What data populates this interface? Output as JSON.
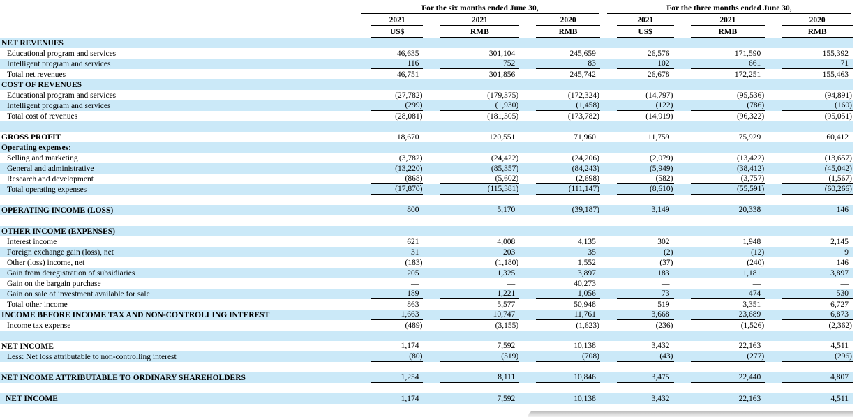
{
  "colors": {
    "stripe": "#cbe9f8",
    "rule": "#000000"
  },
  "table": {
    "groups": [
      {
        "label": "For the six months ended June 30,",
        "years": [
          "2021",
          "2021",
          "2020"
        ],
        "units": [
          "US$",
          "RMB",
          "RMB"
        ]
      },
      {
        "label": "For the three months ended June 30,",
        "years": [
          "2021",
          "2021",
          "2020"
        ],
        "units": [
          "US$",
          "RMB",
          "RMB"
        ]
      }
    ],
    "rows": [
      {
        "type": "section",
        "label": "NET REVENUES",
        "values": [
          "",
          "",
          "",
          "",
          "",
          ""
        ]
      },
      {
        "type": "item",
        "label": "Educational program and services",
        "values": [
          "46,635",
          "301,104",
          "245,659",
          "26,576",
          "171,590",
          "155,392"
        ]
      },
      {
        "type": "item",
        "label": "Intelligent program and services",
        "underline": true,
        "values": [
          "116",
          "752",
          "83",
          "102",
          "661",
          "71"
        ]
      },
      {
        "type": "item",
        "label": "Total net revenues",
        "values": [
          "46,751",
          "301,856",
          "245,742",
          "26,678",
          "172,251",
          "155,463"
        ]
      },
      {
        "type": "section",
        "label": "COST OF REVENUES",
        "values": [
          "",
          "",
          "",
          "",
          "",
          ""
        ]
      },
      {
        "type": "item",
        "label": "Educational program and services",
        "values": [
          "(27,782)",
          "(179,375)",
          "(172,324)",
          "(14,797)",
          "(95,536)",
          "(94,891)"
        ]
      },
      {
        "type": "item",
        "label": "Intelligent program and services",
        "underline": true,
        "values": [
          "(299)",
          "(1,930)",
          "(1,458)",
          "(122)",
          "(786)",
          "(160)"
        ]
      },
      {
        "type": "item",
        "label": "Total cost of revenues",
        "values": [
          "(28,081)",
          "(181,305)",
          "(173,782)",
          "(14,919)",
          "(96,322)",
          "(95,051)"
        ]
      },
      {
        "type": "spacer"
      },
      {
        "type": "section",
        "label": "GROSS PROFIT",
        "values": [
          "18,670",
          "120,551",
          "71,960",
          "11,759",
          "75,929",
          "60,412"
        ]
      },
      {
        "type": "section",
        "label": "Operating expenses:",
        "values": [
          "",
          "",
          "",
          "",
          "",
          ""
        ]
      },
      {
        "type": "item",
        "label": "Selling and marketing",
        "values": [
          "(3,782)",
          "(24,422)",
          "(24,206)",
          "(2,079)",
          "(13,422)",
          "(13,657)"
        ]
      },
      {
        "type": "item",
        "label": "General and administrative",
        "values": [
          "(13,220)",
          "(85,357)",
          "(84,243)",
          "(5,949)",
          "(38,412)",
          "(45,042)"
        ]
      },
      {
        "type": "item",
        "label": "Research and development",
        "underline": true,
        "values": [
          "(868)",
          "(5,602)",
          "(2,698)",
          "(582)",
          "(3,757)",
          "(1,567)"
        ]
      },
      {
        "type": "item",
        "label": "Total operating expenses",
        "underline": true,
        "values": [
          "(17,870)",
          "(115,381)",
          "(111,147)",
          "(8,610)",
          "(55,591)",
          "(60,266)"
        ]
      },
      {
        "type": "spacer"
      },
      {
        "type": "section",
        "label": "OPERATING INCOME (LOSS)",
        "underline": true,
        "values": [
          "800",
          "5,170",
          "(39,187)",
          "3,149",
          "20,338",
          "146"
        ]
      },
      {
        "type": "spacer"
      },
      {
        "type": "section",
        "label": "OTHER INCOME (EXPENSES)",
        "values": [
          "",
          "",
          "",
          "",
          "",
          ""
        ]
      },
      {
        "type": "item",
        "label": "Interest income",
        "values": [
          "621",
          "4,008",
          "4,135",
          "302",
          "1,948",
          "2,145"
        ]
      },
      {
        "type": "item",
        "label": "Foreign exchange gain (loss), net",
        "values": [
          "31",
          "203",
          "35",
          "(2)",
          "(12)",
          "9"
        ]
      },
      {
        "type": "item",
        "label": "Other (loss) income, net",
        "values": [
          "(183)",
          "(1,180)",
          "1,552",
          "(37)",
          "(240)",
          "146"
        ]
      },
      {
        "type": "item",
        "label": "Gain from deregistration of subsidiaries",
        "values": [
          "205",
          "1,325",
          "3,897",
          "183",
          "1,181",
          "3,897"
        ]
      },
      {
        "type": "item",
        "label": "Gain on the bargain purchase",
        "values": [
          "—",
          "—",
          "40,273",
          "—",
          "—",
          "—"
        ]
      },
      {
        "type": "item",
        "label": "Gain on sale of investment available for sale",
        "underline": true,
        "values": [
          "189",
          "1,221",
          "1,056",
          "73",
          "474",
          "530"
        ]
      },
      {
        "type": "item",
        "label": "Total other income",
        "values": [
          "863",
          "5,577",
          "50,948",
          "519",
          "3,351",
          "6,727"
        ]
      },
      {
        "type": "section",
        "label": "INCOME BEFORE INCOME TAX AND NON-CONTROLLING INTEREST",
        "underline": true,
        "values": [
          "1,663",
          "10,747",
          "11,761",
          "3,668",
          "23,689",
          "6,873"
        ]
      },
      {
        "type": "item",
        "label": "Income tax expense",
        "values": [
          "(489)",
          "(3,155)",
          "(1,623)",
          "(236)",
          "(1,526)",
          "(2,362)"
        ]
      },
      {
        "type": "spacer"
      },
      {
        "type": "section",
        "label": "NET INCOME",
        "underline": true,
        "values": [
          "1,174",
          "7,592",
          "10,138",
          "3,432",
          "22,163",
          "4,511"
        ]
      },
      {
        "type": "item",
        "label": "Less: Net loss attributable to non-controlling interest",
        "underline": true,
        "values": [
          "(80)",
          "(519)",
          "(708)",
          "(43)",
          "(277)",
          "(296)"
        ]
      },
      {
        "type": "spacer"
      },
      {
        "type": "section",
        "label": "NET INCOME ATTRIBUTABLE TO ORDINARY SHAREHOLDERS",
        "underline": "thick",
        "values": [
          "1,254",
          "8,111",
          "10,846",
          "3,475",
          "22,440",
          "4,807"
        ]
      },
      {
        "type": "spacer"
      },
      {
        "type": "section-indent",
        "label": "NET INCOME",
        "values": [
          "1,174",
          "7,592",
          "10,138",
          "3,432",
          "22,163",
          "4,511"
        ]
      }
    ]
  }
}
